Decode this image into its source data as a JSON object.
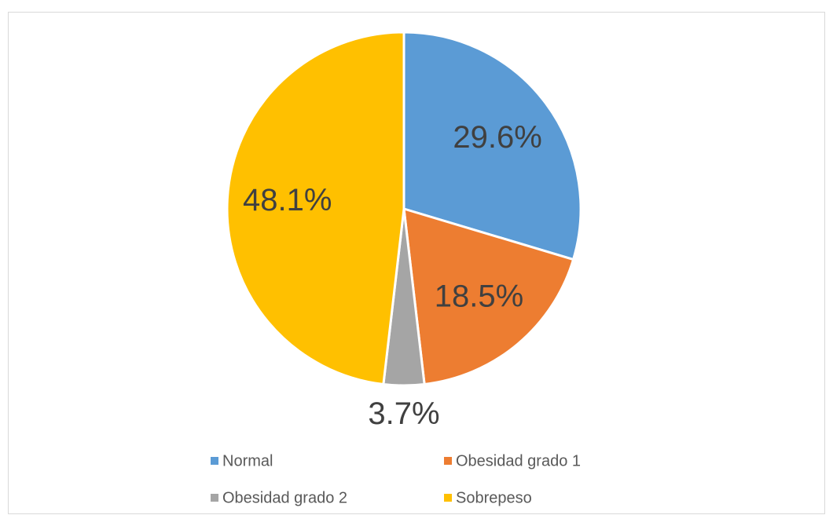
{
  "chart_data": {
    "type": "pie",
    "categories": [
      "Normal",
      "Obesidad grado 1",
      "Obesidad grado 2",
      "Sobrepeso"
    ],
    "values": [
      29.6,
      18.5,
      3.7,
      48.1
    ],
    "value_labels": [
      "29.6%",
      "18.5%",
      "3.7%",
      "48.1%"
    ],
    "colors": [
      "#5b9bd5",
      "#ed7d31",
      "#a5a5a5",
      "#ffc000"
    ],
    "legend": "bottom"
  }
}
